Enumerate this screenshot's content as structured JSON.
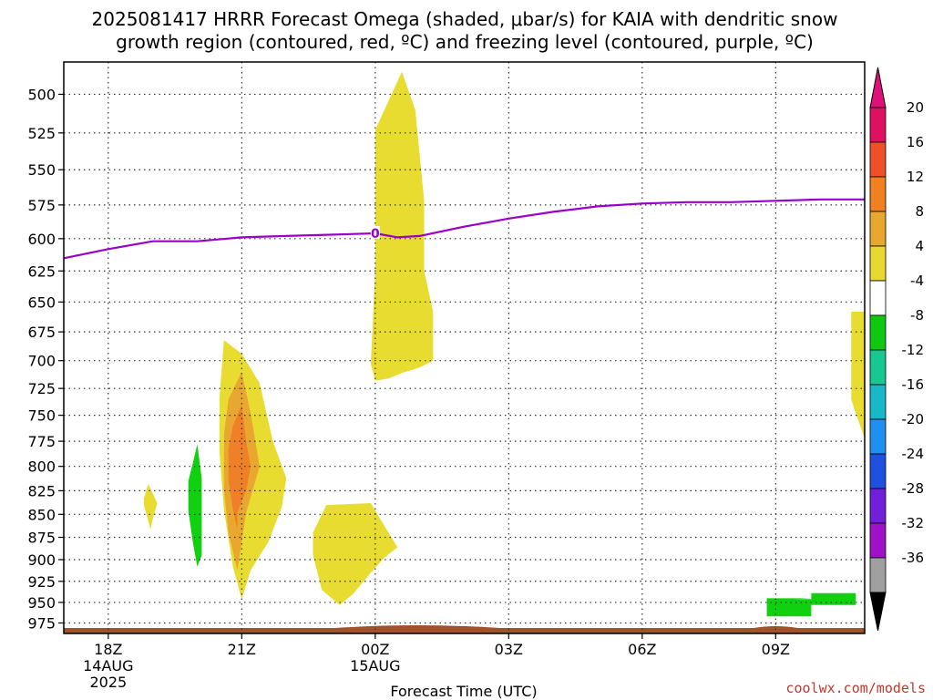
{
  "chart_data": {
    "type": "heatmap",
    "title_line1": "2025081417 HRRR Forecast Omega (shaded, μbar/s) for KAIA with dendritic snow",
    "title_line2": "growth region (contoured, red, ºC) and freezing level (contoured, purple, ºC)",
    "xlabel": "Forecast Time (UTC)",
    "x_ticks": [
      {
        "hour": 1,
        "lines": [
          "18Z",
          "14AUG",
          "2025"
        ]
      },
      {
        "hour": 4,
        "lines": [
          "21Z"
        ]
      },
      {
        "hour": 7,
        "lines": [
          "00Z",
          "15AUG"
        ]
      },
      {
        "hour": 10,
        "lines": [
          "03Z"
        ]
      },
      {
        "hour": 13,
        "lines": [
          "06Z"
        ]
      },
      {
        "hour": 16,
        "lines": [
          "09Z"
        ]
      }
    ],
    "xlim": [
      0,
      18
    ],
    "y_ticks": [
      500,
      525,
      550,
      575,
      600,
      625,
      650,
      675,
      700,
      725,
      750,
      775,
      800,
      825,
      850,
      875,
      900,
      925,
      950,
      975
    ],
    "ylim_hPa": [
      988,
      480
    ],
    "y_scale": "log",
    "grid": true,
    "colorbar": {
      "labels": [
        "20",
        "16",
        "12",
        "8",
        "4",
        "-4",
        "-8",
        "-12",
        "-16",
        "-20",
        "-24",
        "-28",
        "-32",
        "-36"
      ],
      "colors": [
        "#e01060",
        "#f05028",
        "#f08020",
        "#e8a830",
        "#e8d830",
        "#ffffff",
        "#10c810",
        "#18c890",
        "#18b8c8",
        "#2090f0",
        "#2050e0",
        "#7020d8",
        "#a010c8",
        "#a0a0a0"
      ],
      "top_arrow_color": "#e0107a",
      "bottom_arrow_color": "#000000"
    },
    "freezing_level": {
      "label": "0",
      "color": "#9a00c8",
      "hours": [
        0,
        1,
        2,
        3,
        4,
        5,
        6,
        7,
        7.5,
        8,
        9,
        10,
        11,
        12,
        13,
        14,
        15,
        16,
        17,
        18
      ],
      "pressure": [
        615,
        608,
        602,
        602,
        599,
        598,
        597,
        596,
        599,
        598,
        591,
        585,
        580,
        576,
        574,
        573,
        573,
        572,
        571,
        571
      ]
    },
    "omega_regions": [
      {
        "value_band": "4 to 8",
        "color": "#e8dc30",
        "points": [
          [
            7.6,
            486
          ],
          [
            7.9,
            510
          ],
          [
            8.1,
            572
          ],
          [
            8.1,
            625
          ],
          [
            8.3,
            658
          ],
          [
            8.3,
            700
          ],
          [
            8.0,
            706
          ],
          [
            7.6,
            711
          ],
          [
            7.3,
            716
          ],
          [
            7.0,
            718
          ],
          [
            6.9,
            703
          ],
          [
            7.0,
            625
          ],
          [
            7.0,
            523
          ]
        ]
      },
      {
        "value_band": "4 to 8",
        "color": "#e8dc30",
        "points": [
          [
            3.6,
            682
          ],
          [
            4.0,
            694
          ],
          [
            4.4,
            720
          ],
          [
            4.7,
            775
          ],
          [
            5.0,
            812
          ],
          [
            4.9,
            842
          ],
          [
            4.6,
            880
          ],
          [
            4.2,
            912
          ],
          [
            4.0,
            946
          ],
          [
            3.8,
            908
          ],
          [
            3.6,
            845
          ],
          [
            3.5,
            785
          ],
          [
            3.5,
            733
          ]
        ]
      },
      {
        "value_band": "8 to 12",
        "color": "#e8a830",
        "points": [
          [
            4.0,
            710
          ],
          [
            4.2,
            748
          ],
          [
            4.4,
            800
          ],
          [
            4.1,
            848
          ],
          [
            4.0,
            880
          ],
          [
            3.9,
            912
          ],
          [
            3.7,
            870
          ],
          [
            3.6,
            823
          ],
          [
            3.6,
            768
          ],
          [
            3.7,
            735
          ]
        ]
      },
      {
        "value_band": "12 to 16",
        "color": "#f08028",
        "points": [
          [
            4.0,
            740
          ],
          [
            4.1,
            775
          ],
          [
            4.2,
            800
          ],
          [
            4.1,
            825
          ],
          [
            3.9,
            848
          ],
          [
            3.9,
            866
          ],
          [
            3.8,
            845
          ],
          [
            3.7,
            814
          ],
          [
            3.7,
            783
          ],
          [
            3.8,
            760
          ]
        ]
      },
      {
        "value_band": "-8 to -4",
        "color": "#10d010",
        "points": [
          [
            3.0,
            778
          ],
          [
            3.1,
            812
          ],
          [
            3.1,
            865
          ],
          [
            3.1,
            895
          ],
          [
            3.0,
            908
          ],
          [
            2.9,
            880
          ],
          [
            2.8,
            846
          ],
          [
            2.8,
            815
          ],
          [
            2.9,
            797
          ]
        ]
      },
      {
        "value_band": "4 to 8",
        "color": "#e8dc30",
        "points": [
          [
            1.9,
            818
          ],
          [
            2.1,
            838
          ],
          [
            2.0,
            855
          ],
          [
            1.95,
            866
          ],
          [
            1.8,
            840
          ],
          [
            1.8,
            833
          ]
        ]
      },
      {
        "value_band": "4 to 8",
        "color": "#e8dc30",
        "points": [
          [
            5.9,
            840
          ],
          [
            6.9,
            838
          ],
          [
            7.2,
            862
          ],
          [
            7.5,
            886
          ],
          [
            7.2,
            898
          ],
          [
            6.9,
            915
          ],
          [
            6.5,
            940
          ],
          [
            6.2,
            953
          ],
          [
            5.8,
            935
          ],
          [
            5.6,
            895
          ],
          [
            5.6,
            870
          ]
        ]
      },
      {
        "value_band": "-8 to -4",
        "color": "#10d010",
        "points": [
          [
            15.8,
            948
          ],
          [
            16.8,
            945
          ],
          [
            16.8,
            953
          ],
          [
            17.8,
            953
          ],
          [
            17.8,
            939
          ],
          [
            16.8,
            939
          ],
          [
            16.8,
            945
          ],
          [
            15.8,
            945
          ]
        ]
      },
      {
        "value_band": "-8 to -4",
        "color": "#10d010",
        "points": [
          [
            15.8,
            946
          ],
          [
            16.8,
            946
          ],
          [
            16.8,
            967
          ],
          [
            15.8,
            967
          ]
        ]
      },
      {
        "value_band": "4 to 8",
        "color": "#e8dc30",
        "points": [
          [
            17.7,
            658
          ],
          [
            18,
            658
          ],
          [
            18,
            772
          ],
          [
            17.8,
            748
          ],
          [
            17.7,
            735
          ]
        ]
      }
    ],
    "terrain_color": "#a0522d"
  },
  "credit": "coolwx.com/models"
}
